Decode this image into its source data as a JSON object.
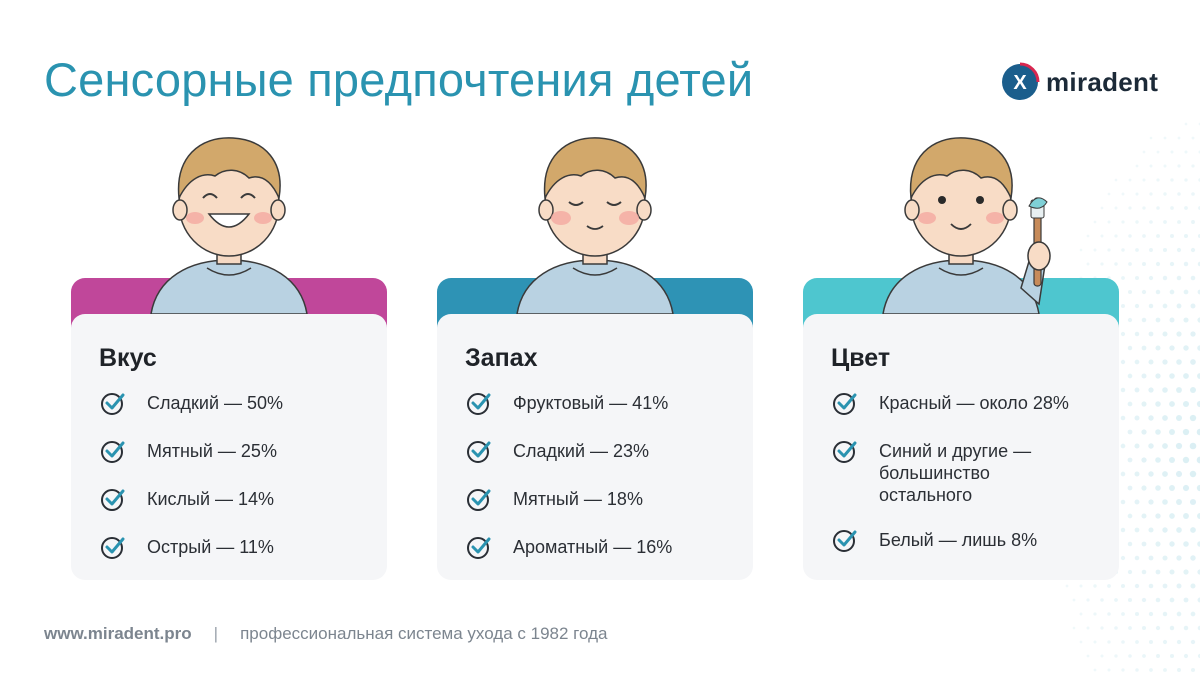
{
  "header": {
    "title": "Сенсорные предпочтения детей"
  },
  "brand": {
    "name": "miradent",
    "logo_letter": "X",
    "logo_color": "#1b5e8c",
    "accent": "#2a93b0"
  },
  "cards": [
    {
      "title": "Вкус",
      "tab_color": "#c0479a",
      "illustration": "smiling-child",
      "items": [
        "Сладкий — 50%",
        "Мятный — 25%",
        "Кислый — 14%",
        "Острый — 11%"
      ]
    },
    {
      "title": "Запах",
      "tab_color": "#2e93b5",
      "illustration": "calm-child-eyes-closed",
      "items": [
        "Фруктовый — 41%",
        "Сладкий — 23%",
        "Мятный — 18%",
        "Ароматный — 16%"
      ]
    },
    {
      "title": "Цвет",
      "tab_color": "#4ec6cf",
      "illustration": "child-holding-toothbrush",
      "items": [
        "Красный — около 28%",
        "Синий и другие — большинство остального",
        "Белый — лишь 8%"
      ]
    }
  ],
  "footer": {
    "site": "www.miradent.pro",
    "separator": "|",
    "tagline": "профессиональная система ухода с 1982 года"
  }
}
